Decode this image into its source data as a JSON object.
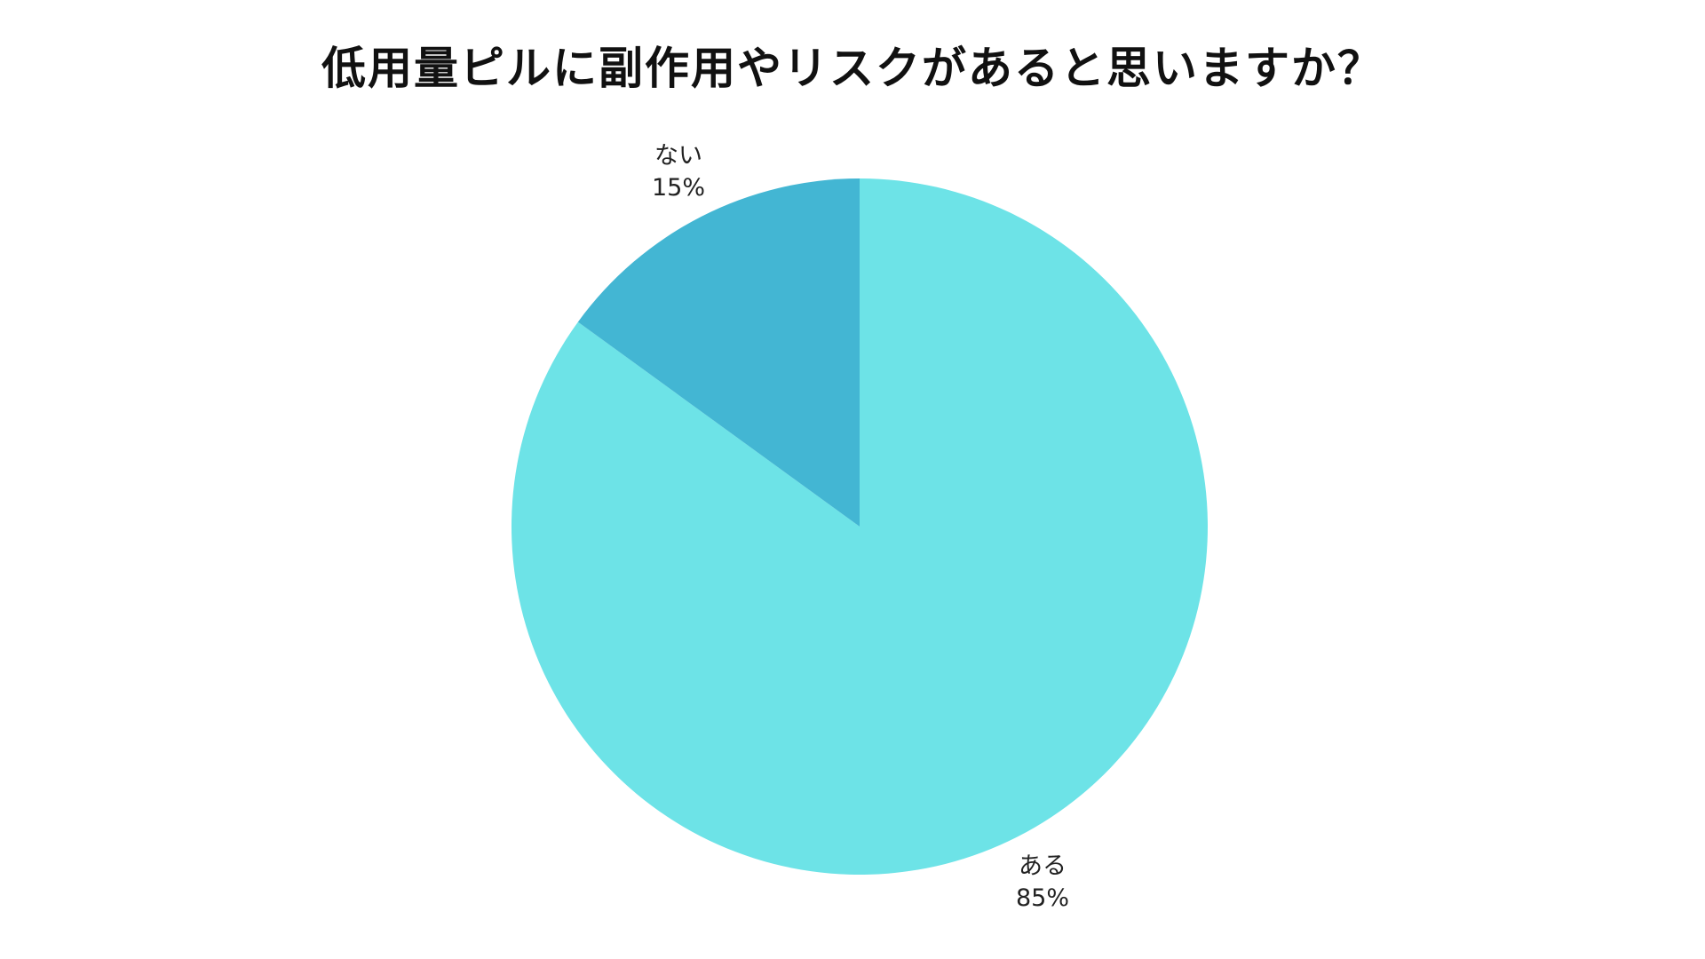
{
  "chart_data": {
    "type": "pie",
    "title": "低用量ピルに副作用やリスクがあると思いますか？",
    "slices": [
      {
        "label": "ある",
        "value": 85,
        "value_label": "85%",
        "color": "#6de3e7"
      },
      {
        "label": "ない",
        "value": 15,
        "value_label": "15%",
        "color": "#43b6d3"
      }
    ],
    "start_angle_deg": 0,
    "direction": "clockwise",
    "legend": "none"
  }
}
